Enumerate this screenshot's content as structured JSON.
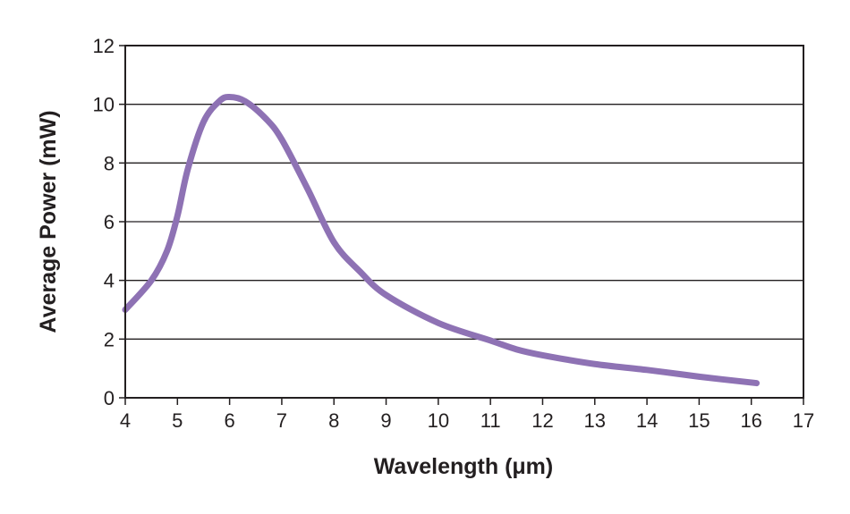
{
  "chart_data": {
    "type": "line",
    "title": "",
    "xlabel": "Wavelength (μm)",
    "ylabel": "Average Power (mW)",
    "xlim": [
      4,
      17
    ],
    "ylim": [
      0,
      12
    ],
    "xticks": [
      4,
      5,
      6,
      7,
      8,
      9,
      10,
      11,
      12,
      13,
      14,
      15,
      16,
      17
    ],
    "yticks": [
      0,
      2,
      4,
      6,
      8,
      10,
      12
    ],
    "grid": "horizontal",
    "series": [
      {
        "color": "#8e72b4",
        "x": [
          4,
          4.5,
          4.8,
          5,
          5.2,
          5.5,
          5.8,
          6,
          6.3,
          6.7,
          7,
          7.5,
          8,
          8.5,
          9,
          10,
          11,
          11.5,
          12,
          13,
          14,
          15,
          16.1
        ],
        "y": [
          3.0,
          4.0,
          5.0,
          6.2,
          7.8,
          9.4,
          10.1,
          10.25,
          10.1,
          9.5,
          8.8,
          7.1,
          5.3,
          4.3,
          3.5,
          2.55,
          1.95,
          1.65,
          1.45,
          1.15,
          0.95,
          0.72,
          0.5
        ]
      }
    ]
  }
}
